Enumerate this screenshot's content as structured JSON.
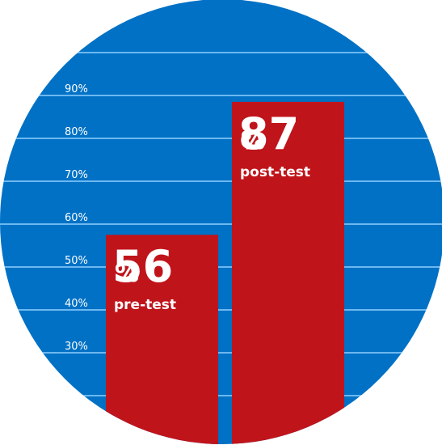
{
  "colors": {
    "background": "#0071c5",
    "gridline": "#8fd0ff",
    "bar": "#c0141b",
    "text": "#ffffff"
  },
  "chart_data": {
    "type": "bar",
    "title": "",
    "xlabel": "",
    "ylabel": "",
    "ylim": [
      20,
      95
    ],
    "grid": true,
    "y_ticks": [
      30,
      40,
      50,
      60,
      70,
      80,
      90
    ],
    "y_tick_labels": [
      "30%",
      "40%",
      "50%",
      "60%",
      "70%",
      "80%",
      "90%"
    ],
    "categories": [
      "pre-test",
      "post-test"
    ],
    "values": [
      56,
      87
    ],
    "value_labels": [
      "56",
      "87"
    ],
    "value_unit": "%"
  }
}
